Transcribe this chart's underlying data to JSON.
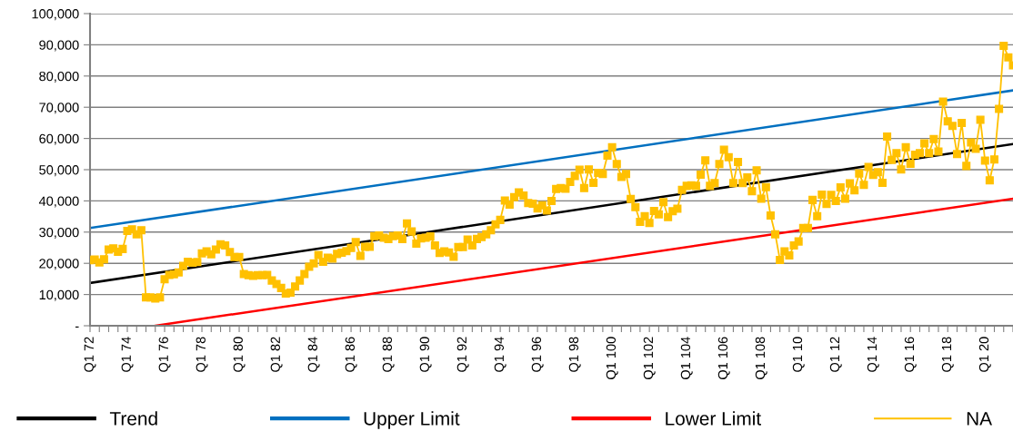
{
  "chart_data": {
    "type": "line",
    "categories": [
      "Q1 72",
      null,
      null,
      null,
      null,
      null,
      null,
      null,
      "Q1 74",
      null,
      null,
      null,
      null,
      null,
      null,
      null,
      "Q1 76",
      null,
      null,
      null,
      null,
      null,
      null,
      null,
      "Q1 78",
      null,
      null,
      null,
      null,
      null,
      null,
      null,
      "Q1 80",
      null,
      null,
      null,
      null,
      null,
      null,
      null,
      "Q1 82",
      null,
      null,
      null,
      null,
      null,
      null,
      null,
      "Q1 84",
      null,
      null,
      null,
      null,
      null,
      null,
      null,
      "Q1 86",
      null,
      null,
      null,
      null,
      null,
      null,
      null,
      "Q1 88",
      null,
      null,
      null,
      null,
      null,
      null,
      null,
      "Q1 90",
      null,
      null,
      null,
      null,
      null,
      null,
      null,
      "Q1 92",
      null,
      null,
      null,
      null,
      null,
      null,
      null,
      "Q1 94",
      null,
      null,
      null,
      null,
      null,
      null,
      null,
      "Q1 96",
      null,
      null,
      null,
      null,
      null,
      null,
      null,
      "Q1 98",
      null,
      null,
      null,
      null,
      null,
      null,
      null,
      "Q1 100",
      null,
      null,
      null,
      null,
      null,
      null,
      null,
      "Q1 102",
      null,
      null,
      null,
      null,
      null,
      null,
      null,
      "Q1 104",
      null,
      null,
      null,
      null,
      null,
      null,
      null,
      "Q1 106",
      null,
      null,
      null,
      null,
      null,
      null,
      null,
      "Q1 108",
      null,
      null,
      null,
      null,
      null,
      null,
      null,
      "Q1 10",
      null,
      null,
      null,
      null,
      null,
      null,
      null,
      "Q1 12",
      null,
      null,
      null,
      null,
      null,
      null,
      null,
      "Q1 14",
      null,
      null,
      null,
      null,
      null,
      null,
      null,
      "Q1 16",
      null,
      null,
      null,
      null,
      null,
      null,
      null,
      "Q1 18",
      null,
      null,
      null,
      null,
      null,
      null,
      null,
      "Q1 20",
      null,
      null,
      null,
      null,
      null,
      null
    ],
    "ylim": [
      0,
      100000
    ],
    "yticks": [
      {
        "value": 0,
        "label": "-"
      },
      {
        "value": 10000,
        "label": "10,000"
      },
      {
        "value": 20000,
        "label": "20,000"
      },
      {
        "value": 30000,
        "label": "30,000"
      },
      {
        "value": 40000,
        "label": "40,000"
      },
      {
        "value": 50000,
        "label": "50,000"
      },
      {
        "value": 60000,
        "label": "60,000"
      },
      {
        "value": 70000,
        "label": "70,000"
      },
      {
        "value": 80000,
        "label": "80,000"
      },
      {
        "value": 90000,
        "label": "90,000"
      },
      {
        "value": 100000,
        "label": "100,000"
      }
    ],
    "grid": "y",
    "legend": "bottom",
    "series": [
      {
        "name": "Trend",
        "color": "#000000",
        "marker": "none",
        "values": [
          13700,
          null,
          null,
          null,
          null,
          null,
          null,
          null,
          null,
          null,
          null,
          null,
          null,
          null,
          null,
          null,
          null,
          null,
          null,
          null,
          null,
          null,
          null,
          null,
          null,
          null,
          null,
          null,
          null,
          null,
          null,
          null,
          null,
          null,
          null,
          null,
          null,
          null,
          null,
          null,
          null,
          null,
          null,
          null,
          null,
          null,
          null,
          null,
          null,
          null,
          null,
          null,
          null,
          null,
          null,
          null,
          null,
          null,
          null,
          null,
          null,
          null,
          null,
          null,
          null,
          null,
          null,
          null,
          null,
          null,
          null,
          null,
          null,
          null,
          null,
          null,
          null,
          null,
          null,
          null,
          null,
          null,
          null,
          null,
          null,
          null,
          null,
          null,
          null,
          null,
          null,
          null,
          null,
          null,
          null,
          null,
          null,
          null,
          null,
          null,
          null,
          null,
          null,
          null,
          null,
          null,
          null,
          null,
          null,
          null,
          null,
          null,
          null,
          null,
          null,
          null,
          null,
          null,
          null,
          null,
          null,
          null,
          null,
          null,
          null,
          null,
          null,
          null,
          null,
          null,
          null,
          null,
          null,
          null,
          null,
          null,
          null,
          null,
          null,
          null,
          null,
          null,
          null,
          null,
          null,
          null,
          null,
          null,
          null,
          null,
          null,
          null,
          null,
          null,
          null,
          null,
          null,
          null,
          null,
          null,
          null,
          null,
          null,
          null,
          null,
          null,
          null,
          null,
          null,
          null,
          null,
          null,
          null,
          null,
          null,
          null,
          null,
          null,
          null,
          null,
          null,
          null,
          null,
          null,
          null,
          null,
          null,
          null,
          null,
          null,
          null,
          null,
          null,
          null,
          null,
          null,
          null,
          null,
          58200
        ]
      },
      {
        "name": "Upper Limit",
        "color": "#0070c0",
        "marker": "none",
        "values": [
          31300,
          null,
          null,
          null,
          null,
          null,
          null,
          null,
          null,
          null,
          null,
          null,
          null,
          null,
          null,
          null,
          null,
          null,
          null,
          null,
          null,
          null,
          null,
          null,
          null,
          null,
          null,
          null,
          null,
          null,
          null,
          null,
          null,
          null,
          null,
          null,
          null,
          null,
          null,
          null,
          null,
          null,
          null,
          null,
          null,
          null,
          null,
          null,
          null,
          null,
          null,
          null,
          null,
          null,
          null,
          null,
          null,
          null,
          null,
          null,
          null,
          null,
          null,
          null,
          null,
          null,
          null,
          null,
          null,
          null,
          null,
          null,
          null,
          null,
          null,
          null,
          null,
          null,
          null,
          null,
          null,
          null,
          null,
          null,
          null,
          null,
          null,
          null,
          null,
          null,
          null,
          null,
          null,
          null,
          null,
          null,
          null,
          null,
          null,
          null,
          null,
          null,
          null,
          null,
          null,
          null,
          null,
          null,
          null,
          null,
          null,
          null,
          null,
          null,
          null,
          null,
          null,
          null,
          null,
          null,
          null,
          null,
          null,
          null,
          null,
          null,
          null,
          null,
          null,
          null,
          null,
          null,
          null,
          null,
          null,
          null,
          null,
          null,
          null,
          null,
          null,
          null,
          null,
          null,
          null,
          null,
          null,
          null,
          null,
          null,
          null,
          null,
          null,
          null,
          null,
          null,
          null,
          null,
          null,
          null,
          null,
          null,
          null,
          null,
          null,
          null,
          null,
          null,
          null,
          null,
          null,
          null,
          null,
          null,
          null,
          null,
          null,
          null,
          null,
          null,
          null,
          null,
          null,
          null,
          null,
          null,
          null,
          null,
          null,
          null,
          null,
          null,
          null,
          null,
          null,
          null,
          null,
          null,
          75400
        ]
      },
      {
        "name": "Lower Limit",
        "color": "#ff0000",
        "marker": "none",
        "values": [
          null,
          null,
          null,
          null,
          null,
          null,
          null,
          null,
          null,
          null,
          null,
          null,
          null,
          null,
          0,
          null,
          null,
          null,
          null,
          null,
          null,
          null,
          null,
          null,
          null,
          null,
          null,
          null,
          null,
          null,
          null,
          null,
          null,
          null,
          null,
          null,
          null,
          null,
          null,
          null,
          null,
          null,
          null,
          null,
          null,
          null,
          null,
          null,
          null,
          null,
          null,
          null,
          null,
          null,
          null,
          null,
          null,
          null,
          null,
          null,
          null,
          null,
          null,
          null,
          null,
          null,
          null,
          null,
          null,
          null,
          null,
          null,
          null,
          null,
          null,
          null,
          null,
          null,
          null,
          null,
          null,
          null,
          null,
          null,
          null,
          null,
          null,
          null,
          null,
          null,
          null,
          null,
          null,
          null,
          null,
          null,
          null,
          null,
          null,
          null,
          null,
          null,
          null,
          null,
          null,
          null,
          null,
          null,
          null,
          null,
          null,
          null,
          null,
          null,
          null,
          null,
          null,
          null,
          null,
          null,
          null,
          null,
          null,
          null,
          null,
          null,
          null,
          null,
          null,
          null,
          null,
          null,
          null,
          null,
          null,
          null,
          null,
          null,
          null,
          null,
          null,
          null,
          null,
          null,
          null,
          null,
          null,
          null,
          null,
          null,
          null,
          null,
          null,
          null,
          null,
          null,
          null,
          null,
          null,
          null,
          null,
          null,
          null,
          null,
          null,
          null,
          null,
          null,
          null,
          null,
          null,
          null,
          null,
          null,
          null,
          null,
          null,
          null,
          null,
          null,
          null,
          null,
          null,
          null,
          null,
          null,
          null,
          null,
          null,
          null,
          null,
          null,
          null,
          null,
          null,
          null,
          null,
          null,
          40700
        ]
      },
      {
        "name": "NA",
        "color": "#ffc000",
        "marker": "square",
        "values": [
          21000,
          21200,
          20300,
          21300,
          24400,
          24800,
          23700,
          24600,
          30400,
          30900,
          29300,
          30600,
          9100,
          9100,
          8700,
          9100,
          14900,
          16300,
          16500,
          17100,
          19200,
          20500,
          20200,
          20400,
          23200,
          23800,
          22900,
          24400,
          26100,
          25700,
          23600,
          22000,
          22000,
          16600,
          16200,
          16000,
          16200,
          16200,
          16300,
          14500,
          13400,
          12100,
          10300,
          10600,
          12600,
          14500,
          16600,
          18900,
          20000,
          22700,
          20500,
          21800,
          21500,
          23000,
          23400,
          23900,
          24900,
          26800,
          22400,
          25300,
          25300,
          28700,
          28900,
          28200,
          27800,
          28700,
          28900,
          27800,
          32800,
          30200,
          26300,
          28000,
          28200,
          28600,
          25700,
          23300,
          23800,
          23500,
          22100,
          25200,
          25200,
          27600,
          25700,
          27800,
          28400,
          29300,
          30600,
          32500,
          33900,
          40100,
          38800,
          41200,
          42700,
          41700,
          39300,
          39100,
          37600,
          38600,
          36900,
          40000,
          43800,
          44100,
          43900,
          46100,
          48000,
          50000,
          44100,
          50100,
          45800,
          49000,
          48600,
          54500,
          57200,
          51800,
          47700,
          48600,
          40600,
          38000,
          33300,
          35100,
          32900,
          36800,
          35700,
          39600,
          34800,
          36700,
          37500,
          43500,
          44800,
          45000,
          44800,
          48400,
          53000,
          44800,
          45700,
          51800,
          56400,
          54000,
          45700,
          52500,
          45700,
          47500,
          43100,
          49800,
          40700,
          44400,
          35300,
          29300,
          21100,
          23800,
          22500,
          25700,
          27000,
          31300,
          31300,
          40300,
          35100,
          42000,
          39000,
          41900,
          40000,
          44300,
          40700,
          45600,
          43400,
          48800,
          45100,
          50900,
          48300,
          49200,
          45800,
          60600,
          53100,
          55300,
          50100,
          57200,
          51900,
          54800,
          55300,
          58400,
          55300,
          59800,
          55800,
          71800,
          65500,
          64000,
          55000,
          65000,
          51200,
          58700,
          56700,
          66000,
          52900,
          46600,
          53300,
          69500,
          89700,
          86000,
          83400
        ]
      }
    ]
  }
}
